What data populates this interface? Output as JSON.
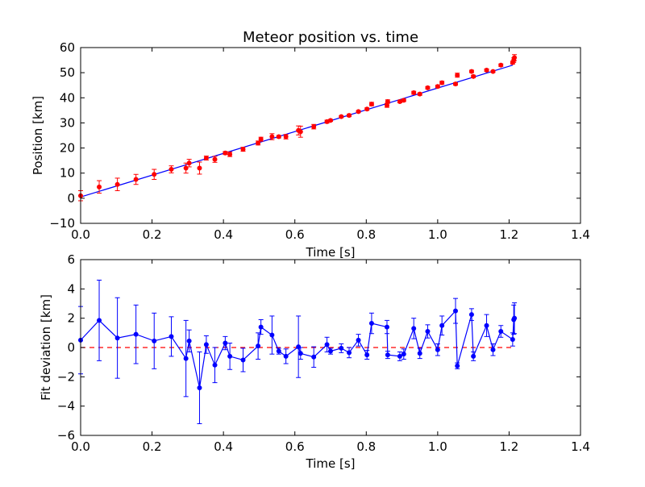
{
  "chart_data": [
    {
      "type": "scatter",
      "title": "Meteor position vs. time",
      "xlabel": "Time [s]",
      "ylabel": "Position [km]",
      "xlim": [
        0.0,
        1.4
      ],
      "ylim": [
        -10,
        60
      ],
      "xticks": [
        "0.0",
        "0.2",
        "0.4",
        "0.6",
        "0.8",
        "1.0",
        "1.2",
        "1.4"
      ],
      "yticks": [
        "−10",
        "0",
        "10",
        "20",
        "30",
        "40",
        "50",
        "60"
      ],
      "grid": false,
      "colors": {
        "points": "#ff0000",
        "fit": "#0000ff"
      },
      "series": [
        {
          "marker": "circle",
          "x": [
            0.0,
            0.052,
            0.103,
            0.155,
            0.206,
            0.254,
            0.295,
            0.304,
            0.333,
            0.352,
            0.376,
            0.405,
            0.418,
            0.455,
            0.497,
            0.505,
            0.536,
            0.555,
            0.575,
            0.61,
            0.616,
            0.653,
            0.69,
            0.7,
            0.73,
            0.752,
            0.778,
            0.802,
            0.815,
            0.858,
            0.86,
            0.894,
            0.905,
            0.933,
            0.95,
            0.972,
            1.0,
            1.012,
            1.05,
            1.055,
            1.095,
            1.1,
            1.137,
            1.155,
            1.177,
            1.21,
            1.213,
            1.215
          ],
          "y": [
            1.0,
            4.5,
            5.5,
            7.5,
            9.5,
            11.5,
            12.0,
            14.0,
            12.0,
            16.0,
            15.5,
            18.0,
            17.5,
            19.5,
            22.0,
            23.5,
            24.5,
            24.5,
            24.5,
            27.0,
            26.5,
            28.5,
            30.5,
            31.0,
            32.5,
            33.0,
            34.5,
            35.5,
            37.5,
            37.0,
            38.5,
            38.5,
            39.0,
            42.0,
            41.5,
            44.0,
            44.5,
            46.0,
            45.5,
            49.0,
            50.5,
            48.5,
            51.0,
            50.5,
            53.0,
            54.0,
            55.0,
            56.0
          ],
          "yerr": [
            2.0,
            2.5,
            2.5,
            2.0,
            2.0,
            1.4,
            2.0,
            1.5,
            2.4,
            0.8,
            1.2,
            0.6,
            0.9,
            0.8,
            0.8,
            0.8,
            1.2,
            0.5,
            0.9,
            1.8,
            2.2,
            0.9,
            0.6,
            0.4,
            0.4,
            0.5,
            0.4,
            0.5,
            0.7,
            0.8,
            0.7,
            0.5,
            0.5,
            0.6,
            0.5,
            0.5,
            0.5,
            0.6,
            0.5,
            0.8,
            0.5,
            0.5,
            0.5,
            0.4,
            0.5,
            0.6,
            0.9,
            1.2
          ]
        },
        {
          "line": true,
          "x": [
            0.0,
            1.21
          ],
          "y": [
            0.5,
            53.0
          ]
        }
      ]
    },
    {
      "type": "line",
      "xlabel": "Time [s]",
      "ylabel": "Fit deviation [km]",
      "xlim": [
        0.0,
        1.4
      ],
      "ylim": [
        -6,
        6
      ],
      "xticks": [
        "0.0",
        "0.2",
        "0.4",
        "0.6",
        "0.8",
        "1.0",
        "1.2",
        "1.4"
      ],
      "yticks": [
        "−6",
        "−4",
        "−2",
        "0",
        "2",
        "4",
        "6"
      ],
      "grid": false,
      "colors": {
        "series": "#0000ff",
        "reference": "#ff0000"
      },
      "reference_line": {
        "y": 0,
        "x": [
          0.0,
          1.21
        ],
        "style": "dashed"
      },
      "series": [
        {
          "marker": "circle",
          "x": [
            0.0,
            0.052,
            0.103,
            0.155,
            0.206,
            0.254,
            0.295,
            0.304,
            0.333,
            0.352,
            0.376,
            0.405,
            0.418,
            0.455,
            0.497,
            0.505,
            0.536,
            0.555,
            0.575,
            0.61,
            0.616,
            0.653,
            0.69,
            0.7,
            0.73,
            0.752,
            0.778,
            0.802,
            0.815,
            0.858,
            0.86,
            0.894,
            0.905,
            0.933,
            0.95,
            0.972,
            1.0,
            1.012,
            1.05,
            1.055,
            1.095,
            1.1,
            1.137,
            1.155,
            1.177,
            1.21,
            1.213,
            1.215
          ],
          "y": [
            0.5,
            1.85,
            0.65,
            0.9,
            0.45,
            0.75,
            -0.75,
            0.45,
            -2.75,
            0.2,
            -1.2,
            0.3,
            -0.6,
            -0.85,
            0.1,
            1.4,
            0.85,
            -0.25,
            -0.6,
            0.05,
            -0.4,
            -0.65,
            0.2,
            -0.25,
            -0.05,
            -0.35,
            0.5,
            -0.5,
            1.65,
            1.4,
            -0.5,
            -0.6,
            -0.45,
            1.3,
            -0.4,
            1.1,
            -0.15,
            1.5,
            2.5,
            -1.25,
            2.25,
            -0.6,
            1.5,
            -0.15,
            1.1,
            0.55,
            1.9,
            2.0
          ],
          "yerr": [
            2.3,
            2.75,
            2.75,
            2.0,
            1.9,
            1.35,
            2.6,
            0.75,
            2.45,
            0.6,
            1.2,
            0.45,
            0.9,
            0.8,
            0.9,
            0.5,
            1.3,
            0.2,
            0.5,
            2.1,
            0.4,
            0.7,
            0.5,
            0.2,
            0.3,
            0.35,
            0.4,
            0.3,
            0.7,
            0.45,
            0.25,
            0.3,
            0.35,
            0.7,
            0.35,
            0.45,
            0.4,
            0.65,
            0.85,
            0.2,
            0.4,
            0.3,
            0.75,
            0.4,
            0.4,
            0.45,
            1.0,
            1.05
          ]
        }
      ]
    }
  ]
}
